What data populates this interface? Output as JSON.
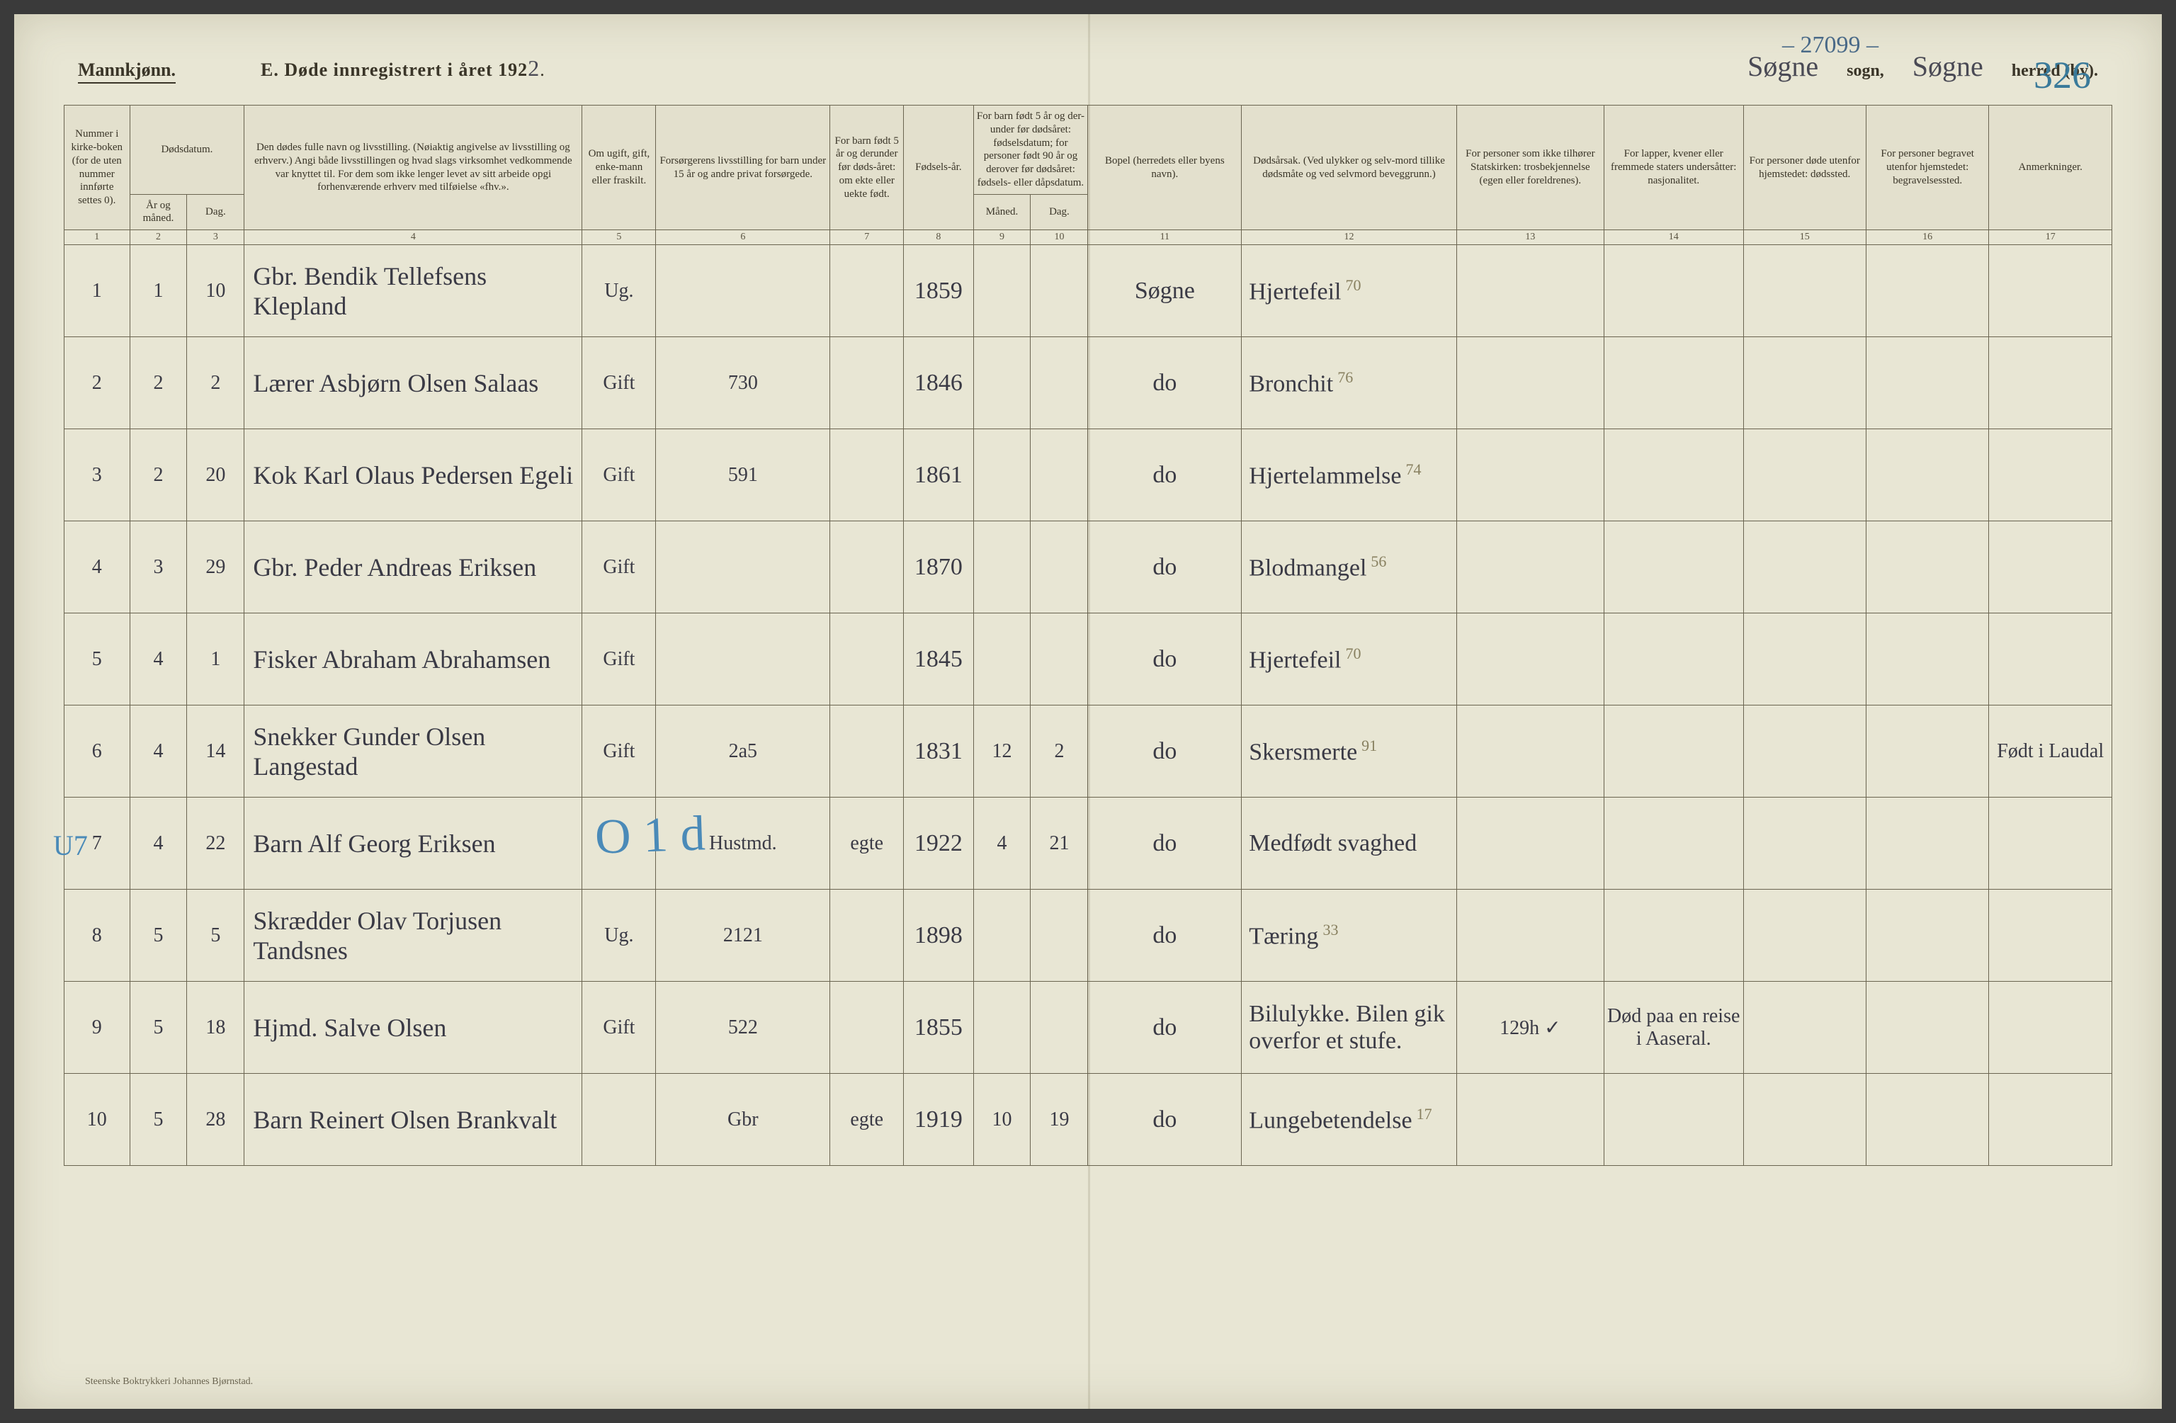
{
  "header": {
    "gender_label": "Mannkjønn.",
    "title_prefix": "E.   Døde innregistrert i året 192",
    "year_digit": "2",
    "title_suffix": ".",
    "sogn_value": "Søgne",
    "sogn_label": "sogn,",
    "herred_value": "Søgne",
    "herred_label": "herred (by).",
    "top_annotation": "– 27099 –",
    "page_number": "326"
  },
  "column_headers": {
    "c1": "Nummer i kirke-boken (for de uten nummer innførte settes 0).",
    "c2_group": "Dødsdatum.",
    "c2": "År og måned.",
    "c3": "Dag.",
    "c4": "Den dødes fulle navn og livsstilling. (Nøiaktig angivelse av livsstilling og erhverv.) Angi både livsstillingen og hvad slags virksomhet vedkommende var knyttet til. For dem som ikke lenger levet av sitt arbeide opgi forhenværende erhverv med tilføielse «fhv.».",
    "c5": "Om ugift, gift, enke-mann eller fraskilt.",
    "c6": "Forsørgerens livsstilling for barn under 15 år og andre privat forsørgede.",
    "c7": "For barn født 5 år og derunder før døds-året: om ekte eller uekte født.",
    "c8": "Fødsels-år.",
    "c9_10_group": "For barn født 5 år og der-under før dødsåret: fødselsdatum; for personer født 90 år og derover før dødsåret: fødsels- eller dåpsdatum.",
    "c9": "Måned.",
    "c10": "Dag.",
    "c11": "Bopel (herredets eller byens navn).",
    "c12": "Dødsårsak. (Ved ulykker og selv-mord tillike dødsmåte og ved selvmord beveggrunn.)",
    "c13": "For personer som ikke tilhører Statskirken: trosbekjennelse (egen eller foreldrenes).",
    "c14": "For lapper, kvener eller fremmede staters undersåtter: nasjonalitet.",
    "c15": "For personer døde utenfor hjemstedet: dødssted.",
    "c16": "For personer begravet utenfor hjemstedet: begravelsessted.",
    "c17": "Anmerkninger."
  },
  "colnums": [
    "1",
    "2",
    "3",
    "4",
    "5",
    "6",
    "7",
    "8",
    "9",
    "10",
    "11",
    "12",
    "13",
    "14",
    "15",
    "16",
    "17"
  ],
  "rows": [
    {
      "num": "1",
      "mon": "1",
      "day": "10",
      "name": "Gbr. Bendik Tellefsens Klepland",
      "status": "Ug.",
      "prov": "",
      "ekte": "",
      "birth": "1859",
      "bm": "",
      "bd": "",
      "bopel": "Søgne",
      "cause": "Hjertefeil",
      "age": "70",
      "c13": "",
      "c14": "",
      "c15": "",
      "c16": "",
      "c17": ""
    },
    {
      "num": "2",
      "mon": "2",
      "day": "2",
      "name": "Lærer Asbjørn Olsen Salaas",
      "status": "Gift",
      "prov": "730",
      "ekte": "",
      "birth": "1846",
      "bm": "",
      "bd": "",
      "bopel": "do",
      "cause": "Bronchit",
      "age": "76",
      "c13": "",
      "c14": "",
      "c15": "",
      "c16": "",
      "c17": ""
    },
    {
      "num": "3",
      "mon": "2",
      "day": "20",
      "name": "Kok Karl Olaus Pedersen Egeli",
      "status": "Gift",
      "prov": "591",
      "ekte": "",
      "birth": "1861",
      "bm": "",
      "bd": "",
      "bopel": "do",
      "cause": "Hjertelammelse",
      "age": "74",
      "c13": "",
      "c14": "",
      "c15": "",
      "c16": "",
      "c17": ""
    },
    {
      "num": "4",
      "mon": "3",
      "day": "29",
      "name": "Gbr. Peder Andreas Eriksen",
      "status": "Gift",
      "prov": "",
      "ekte": "",
      "birth": "1870",
      "bm": "",
      "bd": "",
      "bopel": "do",
      "cause": "Blodmangel",
      "age": "56",
      "c13": "",
      "c14": "",
      "c15": "",
      "c16": "",
      "c17": ""
    },
    {
      "num": "5",
      "mon": "4",
      "day": "1",
      "name": "Fisker Abraham Abrahamsen",
      "status": "Gift",
      "prov": "",
      "ekte": "",
      "birth": "1845",
      "bm": "",
      "bd": "",
      "bopel": "do",
      "cause": "Hjertefeil",
      "age": "70",
      "c13": "",
      "c14": "",
      "c15": "",
      "c16": "",
      "c17": ""
    },
    {
      "num": "6",
      "mon": "4",
      "day": "14",
      "name": "Snekker Gunder Olsen Langestad",
      "status": "Gift",
      "prov": "2a5",
      "ekte": "",
      "birth": "1831",
      "bm": "12",
      "bd": "2",
      "bopel": "do",
      "cause": "Skersmerte",
      "age": "91",
      "c13": "",
      "c14": "",
      "c15": "",
      "c16": "",
      "c17": "Født i Laudal"
    },
    {
      "num": "7",
      "mon": "4",
      "day": "22",
      "name": "Barn Alf Georg Eriksen",
      "status": "",
      "prov": "Hustmd.",
      "ekte": "egte",
      "birth": "1922",
      "bm": "4",
      "bd": "21",
      "bopel": "do",
      "cause": "Medfødt svaghed",
      "age": "",
      "c13": "",
      "c14": "",
      "c15": "",
      "c16": "",
      "c17": ""
    },
    {
      "num": "8",
      "mon": "5",
      "day": "5",
      "name": "Skrædder Olav Torjusen Tandsnes",
      "status": "Ug.",
      "prov": "2121",
      "ekte": "",
      "birth": "1898",
      "bm": "",
      "bd": "",
      "bopel": "do",
      "cause": "Tæring",
      "age": "33",
      "c13": "",
      "c14": "",
      "c15": "",
      "c16": "",
      "c17": ""
    },
    {
      "num": "9",
      "mon": "5",
      "day": "18",
      "name": "Hjmd. Salve Olsen",
      "status": "Gift",
      "prov": "522",
      "ekte": "",
      "birth": "1855",
      "bm": "",
      "bd": "",
      "bopel": "do",
      "cause": "Bilulykke. Bilen gik overfor et stufe.",
      "age": "",
      "c13": "129h ✓",
      "c14": "Død paa en reise i Aaseral.",
      "c15": "",
      "c16": "",
      "c17": ""
    },
    {
      "num": "10",
      "mon": "5",
      "day": "28",
      "name": "Barn Reinert Olsen Brankvalt",
      "status": "",
      "prov": "Gbr",
      "ekte": "egte",
      "birth": "1919",
      "bm": "10",
      "bd": "19",
      "bopel": "do",
      "cause": "Lungebetendelse",
      "age": "17",
      "c13": "",
      "c14": "",
      "c15": "",
      "c16": "",
      "c17": ""
    }
  ],
  "blue_overlay": "O 1 d",
  "left_mark": "U7",
  "footer": "Steenske Boktrykkeri Johannes Bjørnstad.",
  "col_widths_pct": [
    3.2,
    2.8,
    2.8,
    16.5,
    3.6,
    8.5,
    3.6,
    3.4,
    2.8,
    2.8,
    7.5,
    10.5,
    7.2,
    6.8,
    6.0,
    6.0,
    6.0
  ],
  "colors": {
    "paper": "#e8e6d4",
    "ink_print": "#3a3528",
    "ink_hand": "#3a3a45",
    "ink_blue": "#4a8ab8",
    "border": "#6a6450"
  }
}
